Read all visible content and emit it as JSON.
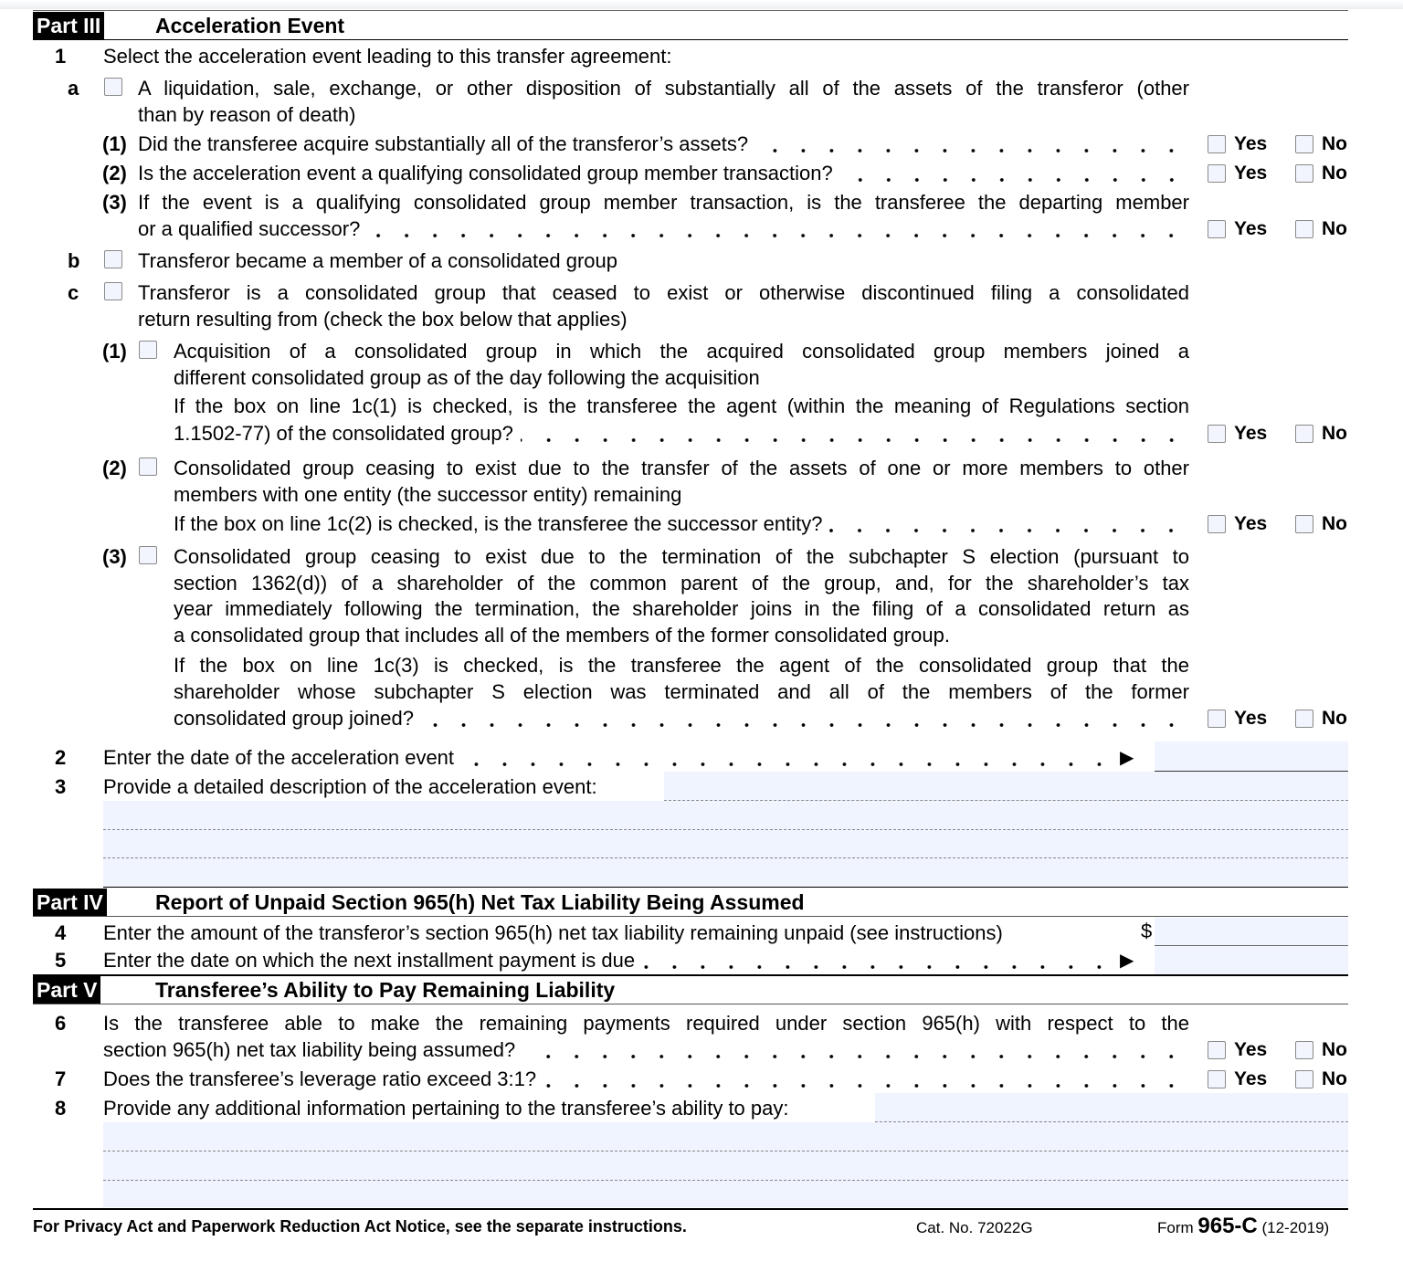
{
  "part3": {
    "label": "Part III",
    "title": "Acceleration Event",
    "l1": {
      "num": "1",
      "text": "Select the acceleration event leading to this transfer agreement:"
    },
    "a": {
      "letter": "a",
      "lines": [
        "A liquidation, sale, exchange, or other disposition of substantially all of the assets of the transferor (other",
        "than by reason of death)"
      ],
      "q1": {
        "label": "(1)",
        "text": "Did the transferee acquire substantially all of the transferor’s assets?"
      },
      "q2": {
        "label": "(2)",
        "text": "Is the acceleration event a qualifying consolidated group member transaction?"
      },
      "q3": {
        "label": "(3)",
        "lines": [
          "If the event is a qualifying consolidated group member transaction, is the transferee the departing member",
          "or a qualified successor?"
        ]
      }
    },
    "b": {
      "letter": "b",
      "text": "Transferor became a member of a consolidated group"
    },
    "c": {
      "letter": "c",
      "lines": [
        "Transferor is a consolidated group that ceased to exist or otherwise discontinued filing a consolidated",
        "return resulting from (check the box below that applies)"
      ],
      "c1": {
        "label": "(1)",
        "lines": [
          "Acquisition of a consolidated group in which the acquired consolidated group members joined a",
          "different consolidated group as of the day following the acquisition",
          "If the box on line 1c(1) is checked, is the transferee the agent (within the meaning of Regulations section",
          "1.1502-77) of the consolidated group?"
        ]
      },
      "c2": {
        "label": "(2)",
        "lines": [
          "Consolidated group ceasing to exist due to the transfer of the assets of one or more members to other",
          "members with one entity (the successor entity) remaining",
          "If the box on line 1c(2) is checked, is the transferee the successor entity?"
        ]
      },
      "c3": {
        "label": "(3)",
        "lines": [
          "Consolidated group ceasing to exist due to the termination of the subchapter S election (pursuant to",
          "section 1362(d)) of a shareholder of the common parent of the group, and, for the shareholder’s tax",
          "year immediately following the termination, the shareholder joins in the filing of a consolidated return as",
          "a consolidated group that includes all of the members of the former consolidated group.",
          "If the box on line 1c(3) is checked, is the transferee the agent of the consolidated group that the",
          "shareholder whose subchapter S election was terminated and all of the members of the former",
          "consolidated group joined?"
        ]
      }
    },
    "l2": {
      "num": "2",
      "text": "Enter the date of the acceleration event",
      "value": ""
    },
    "l3": {
      "num": "3",
      "text": "Provide a detailed description of the acceleration event:",
      "value": ""
    }
  },
  "part4": {
    "label": "Part IV",
    "title": "Report of Unpaid Section 965(h) Net Tax Liability Being Assumed",
    "l4": {
      "num": "4",
      "text": "Enter the amount of the transferor’s section 965(h) net tax liability remaining unpaid (see instructions)",
      "currency": "$",
      "value": ""
    },
    "l5": {
      "num": "5",
      "text": "Enter the date on which the next installment payment is due",
      "value": ""
    }
  },
  "part5": {
    "label": "Part V",
    "title": "Transferee’s Ability to Pay Remaining Liability",
    "l6": {
      "num": "6",
      "lines": [
        "Is the transferee able to make the remaining payments required under section 965(h) with respect to the",
        "section 965(h) net tax liability being assumed?"
      ]
    },
    "l7": {
      "num": "7",
      "text": "Does the transferee’s leverage ratio exceed 3:1?"
    },
    "l8": {
      "num": "8",
      "text": "Provide any additional information pertaining to the transferee’s ability to pay:",
      "value": ""
    }
  },
  "yes_label": "Yes",
  "no_label": "No",
  "arrow": "▶",
  "footer": {
    "privacy": "For Privacy Act and Paperwork Reduction Act Notice, see the separate instructions.",
    "cat": "Cat. No. 72022G",
    "form_prefix": "Form ",
    "form_num": "965-C",
    "form_rev": " (12-2019)"
  },
  "colors": {
    "field_bg": "#f0f4fe",
    "part_bg": "#000000"
  }
}
